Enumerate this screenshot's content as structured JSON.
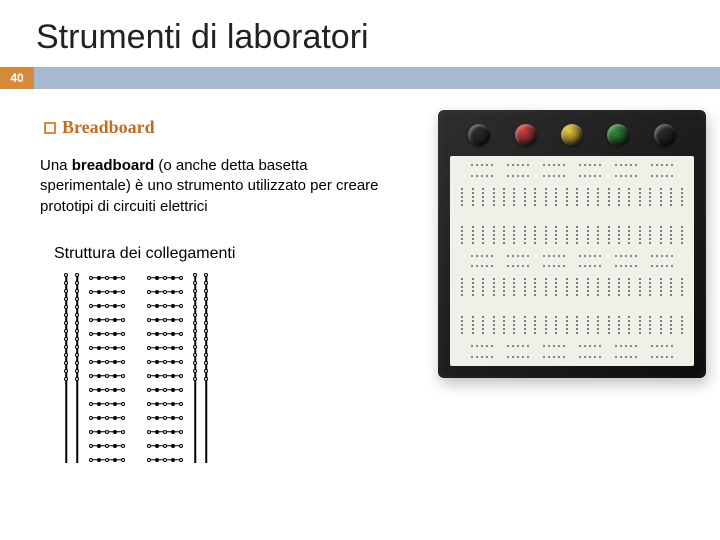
{
  "title": "Strumenti di laboratori",
  "page_number": "40",
  "colors": {
    "page_num_bg": "#d68a3a",
    "bar_bg": "#a7b8cf",
    "bullet_border": "#d68a3a",
    "bullet_text": "#c56a1e"
  },
  "bullet_label": "Breadboard",
  "body_prefix": "Una ",
  "body_bold": "breadboard",
  "body_rest": " (o anche detta basetta sperimentale) è uno strumento utilizzato per creare prototipi di circuiti elettrici",
  "sub_heading": "Struttura dei collegamenti",
  "conn": {
    "rows": 14,
    "rail_dots": 14,
    "strip_dots": 5
  },
  "breadboard": {
    "posts": [
      "#2b2b2b",
      "#d43b3b",
      "#efc83a",
      "#2f8f3a",
      "#2b2b2b"
    ],
    "rail_groups": 6,
    "rail_per_group": 5,
    "field_cols": 22,
    "field_rows": 5
  }
}
